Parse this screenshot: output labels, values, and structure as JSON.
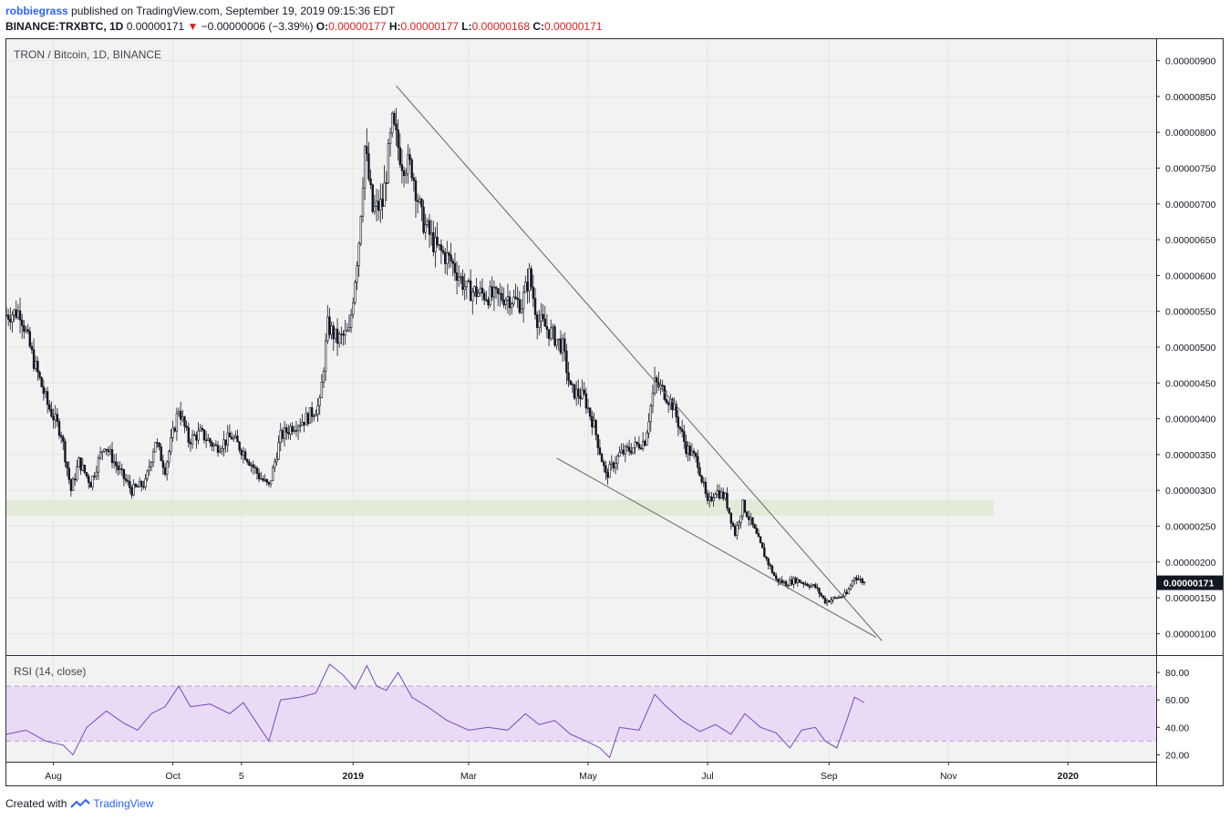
{
  "header": {
    "user": "robbiegrass",
    "published_text": "published on TradingView.com, September 19, 2019 09:15:36 EDT",
    "symbol": "BINANCE:TRXBTC, 1D",
    "last": "0.00000171",
    "change": "−0.00000006 (−3.39%)",
    "o_label": "O:",
    "o": "0.00000177",
    "h_label": "H:",
    "h": "0.00000177",
    "l_label": "L:",
    "l": "0.00000168",
    "c_label": "C:",
    "c": "0.00000171",
    "down_arrow": "▼"
  },
  "footer": {
    "created_with": "Created with",
    "brand": "TradingView"
  },
  "colors": {
    "pane_bg": "#f2f2f2",
    "candle": "#131722",
    "trendline": "#707070",
    "support_zone": "#e1ebd8",
    "rsi_line": "#7e57c2",
    "rsi_band": "#e9dbf5",
    "rsi_band_edge": "#b79bd8",
    "text_up": "#131722",
    "text_down": "#e01e1e",
    "price_tag_bg": "#131722",
    "price_tag_text": "#ffffff"
  },
  "chart_data": [
    {
      "type": "candlestick",
      "title": "TRON / Bitcoin, 1D, BINANCE",
      "x_axis": {
        "ticks": [
          "Aug",
          "Oct",
          "5",
          "2019",
          "Mar",
          "May",
          "Jul",
          "Sep",
          "Nov",
          "2020"
        ],
        "tick_dates": [
          "2018-08-01",
          "2018-10-01",
          "2018-11-05",
          "2019-01-01",
          "2019-03-01",
          "2019-05-01",
          "2019-07-01",
          "2019-09-01",
          "2019-11-01",
          "2020-01-01"
        ],
        "range": [
          "2018-07-08",
          "2020-02-15"
        ]
      },
      "y_axis": {
        "ticks": [
          "0.00000100",
          "0.00000150",
          "0.00000200",
          "0.00000250",
          "0.00000300",
          "0.00000350",
          "0.00000400",
          "0.00000450",
          "0.00000500",
          "0.00000550",
          "0.00000600",
          "0.00000650",
          "0.00000700",
          "0.00000750",
          "0.00000800",
          "0.00000850",
          "0.00000900"
        ],
        "range": [
          7e-07,
          9.3e-06
        ]
      },
      "last_price_label": "0.00000171",
      "close_series": [
        [
          "2018-07-08",
          5.45e-06
        ],
        [
          "2018-07-15",
          5.5e-06
        ],
        [
          "2018-07-22",
          4.8e-06
        ],
        [
          "2018-07-29",
          4.2e-06
        ],
        [
          "2018-08-05",
          3.8e-06
        ],
        [
          "2018-08-10",
          3e-06
        ],
        [
          "2018-08-14",
          3.4e-06
        ],
        [
          "2018-08-20",
          3.1e-06
        ],
        [
          "2018-08-27",
          3.65e-06
        ],
        [
          "2018-09-03",
          3.3e-06
        ],
        [
          "2018-09-10",
          3e-06
        ],
        [
          "2018-09-17",
          3.1e-06
        ],
        [
          "2018-09-22",
          3.7e-06
        ],
        [
          "2018-09-27",
          3.3e-06
        ],
        [
          "2018-10-04",
          4.15e-06
        ],
        [
          "2018-10-09",
          3.7e-06
        ],
        [
          "2018-10-15",
          3.8e-06
        ],
        [
          "2018-10-23",
          3.6e-06
        ],
        [
          "2018-10-31",
          3.75e-06
        ],
        [
          "2018-11-07",
          3.5e-06
        ],
        [
          "2018-11-14",
          3.2e-06
        ],
        [
          "2018-11-19",
          3.05e-06
        ],
        [
          "2018-11-25",
          3.75e-06
        ],
        [
          "2018-12-01",
          3.9e-06
        ],
        [
          "2018-12-08",
          4e-06
        ],
        [
          "2018-12-15",
          4.2e-06
        ],
        [
          "2018-12-19",
          5.3e-06
        ],
        [
          "2018-12-24",
          5.1e-06
        ],
        [
          "2018-12-30",
          5.2e-06
        ],
        [
          "2019-01-04",
          6.5e-06
        ],
        [
          "2019-01-07",
          7.8e-06
        ],
        [
          "2019-01-11",
          6.9e-06
        ],
        [
          "2019-01-16",
          7e-06
        ],
        [
          "2019-01-21",
          8.1e-06
        ],
        [
          "2019-01-26",
          7.6e-06
        ],
        [
          "2019-01-31",
          7.5e-06
        ],
        [
          "2019-02-05",
          6.8e-06
        ],
        [
          "2019-02-12",
          6.4e-06
        ],
        [
          "2019-02-20",
          6.2e-06
        ],
        [
          "2019-02-28",
          5.8e-06
        ],
        [
          "2019-03-07",
          5.75e-06
        ],
        [
          "2019-03-14",
          5.7e-06
        ],
        [
          "2019-03-21",
          5.7e-06
        ],
        [
          "2019-03-28",
          5.6e-06
        ],
        [
          "2019-04-01",
          6e-06
        ],
        [
          "2019-04-05",
          5.4e-06
        ],
        [
          "2019-04-12",
          5.2e-06
        ],
        [
          "2019-04-18",
          5e-06
        ],
        [
          "2019-04-22",
          4.4e-06
        ],
        [
          "2019-04-29",
          4.3e-06
        ],
        [
          "2019-05-04",
          3.9e-06
        ],
        [
          "2019-05-10",
          3.2e-06
        ],
        [
          "2019-05-17",
          3.5e-06
        ],
        [
          "2019-05-24",
          3.6e-06
        ],
        [
          "2019-05-30",
          3.7e-06
        ],
        [
          "2019-06-04",
          4.5e-06
        ],
        [
          "2019-06-08",
          4.4e-06
        ],
        [
          "2019-06-13",
          4.2e-06
        ],
        [
          "2019-06-20",
          3.6e-06
        ],
        [
          "2019-06-26",
          3.4e-06
        ],
        [
          "2019-07-01",
          2.8e-06
        ],
        [
          "2019-07-05",
          3e-06
        ],
        [
          "2019-07-10",
          2.9e-06
        ],
        [
          "2019-07-15",
          2.4e-06
        ],
        [
          "2019-07-19",
          2.8e-06
        ],
        [
          "2019-07-24",
          2.5e-06
        ],
        [
          "2019-07-30",
          2.1e-06
        ],
        [
          "2019-08-05",
          1.75e-06
        ],
        [
          "2019-08-10",
          1.7e-06
        ],
        [
          "2019-08-15",
          1.75e-06
        ],
        [
          "2019-08-20",
          1.7e-06
        ],
        [
          "2019-08-25",
          1.65e-06
        ],
        [
          "2019-08-30",
          1.45e-06
        ],
        [
          "2019-09-05",
          1.5e-06
        ],
        [
          "2019-09-10",
          1.55e-06
        ],
        [
          "2019-09-14",
          1.8e-06
        ],
        [
          "2019-09-19",
          1.71e-06
        ]
      ],
      "trendlines": [
        {
          "from": [
            "2019-01-23",
            8.65e-06
          ],
          "to": [
            "2019-09-28",
            9e-07
          ]
        },
        {
          "from": [
            "2019-04-15",
            3.45e-06
          ],
          "to": [
            "2019-09-25",
            9.5e-07
          ]
        }
      ],
      "zones": [
        {
          "from": "2018-07-08",
          "to": "2019-11-24",
          "low": 2.65e-06,
          "high": 2.87e-06
        }
      ]
    },
    {
      "type": "line",
      "title": "RSI (14, close)",
      "y_axis": {
        "ticks": [
          "20.00",
          "40.00",
          "60.00",
          "80.00"
        ],
        "range": [
          15,
          92
        ]
      },
      "band": [
        30,
        70
      ],
      "series": [
        [
          "2018-07-08",
          35
        ],
        [
          "2018-07-18",
          38
        ],
        [
          "2018-07-28",
          30
        ],
        [
          "2018-08-06",
          27
        ],
        [
          "2018-08-11",
          20
        ],
        [
          "2018-08-18",
          40
        ],
        [
          "2018-08-28",
          52
        ],
        [
          "2018-09-06",
          43
        ],
        [
          "2018-09-13",
          38
        ],
        [
          "2018-09-20",
          50
        ],
        [
          "2018-09-27",
          55
        ],
        [
          "2018-10-04",
          70
        ],
        [
          "2018-10-10",
          55
        ],
        [
          "2018-10-20",
          57
        ],
        [
          "2018-10-30",
          50
        ],
        [
          "2018-11-06",
          58
        ],
        [
          "2018-11-12",
          45
        ],
        [
          "2018-11-19",
          30
        ],
        [
          "2018-11-25",
          60
        ],
        [
          "2018-12-05",
          62
        ],
        [
          "2018-12-13",
          65
        ],
        [
          "2018-12-20",
          86
        ],
        [
          "2018-12-27",
          78
        ],
        [
          "2019-01-02",
          68
        ],
        [
          "2019-01-08",
          85
        ],
        [
          "2019-01-13",
          70
        ],
        [
          "2019-01-18",
          67
        ],
        [
          "2019-01-24",
          80
        ],
        [
          "2019-01-31",
          62
        ],
        [
          "2019-02-08",
          55
        ],
        [
          "2019-02-18",
          45
        ],
        [
          "2019-03-01",
          38
        ],
        [
          "2019-03-11",
          40
        ],
        [
          "2019-03-21",
          38
        ],
        [
          "2019-03-30",
          50
        ],
        [
          "2019-04-06",
          42
        ],
        [
          "2019-04-14",
          45
        ],
        [
          "2019-04-22",
          35
        ],
        [
          "2019-04-30",
          30
        ],
        [
          "2019-05-07",
          25
        ],
        [
          "2019-05-12",
          18
        ],
        [
          "2019-05-17",
          40
        ],
        [
          "2019-05-27",
          38
        ],
        [
          "2019-06-04",
          64
        ],
        [
          "2019-06-10",
          55
        ],
        [
          "2019-06-18",
          45
        ],
        [
          "2019-06-27",
          37
        ],
        [
          "2019-07-05",
          42
        ],
        [
          "2019-07-13",
          35
        ],
        [
          "2019-07-20",
          50
        ],
        [
          "2019-07-28",
          40
        ],
        [
          "2019-08-05",
          36
        ],
        [
          "2019-08-12",
          25
        ],
        [
          "2019-08-18",
          38
        ],
        [
          "2019-08-25",
          40
        ],
        [
          "2019-08-30",
          30
        ],
        [
          "2019-09-05",
          25
        ],
        [
          "2019-09-10",
          45
        ],
        [
          "2019-09-14",
          62
        ],
        [
          "2019-09-19",
          58
        ]
      ]
    }
  ]
}
